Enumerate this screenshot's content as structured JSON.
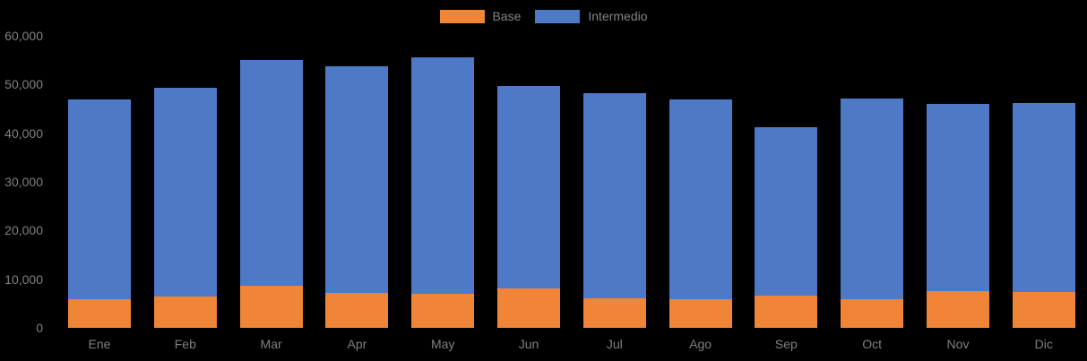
{
  "chart": {
    "background_color": "#000000",
    "axis_text_color": "#808080",
    "legend_text_color": "#848484"
  },
  "chart_data": {
    "type": "bar",
    "stacked": true,
    "title": "",
    "xlabel": "",
    "ylabel": "",
    "categories": [
      "Ene",
      "Feb",
      "Mar",
      "Apr",
      "May",
      "Jun",
      "Jul",
      "Ago",
      "Sep",
      "Oct",
      "Nov",
      "Dic"
    ],
    "series": [
      {
        "name": "Base",
        "color": "#F08437",
        "values": [
          5800,
          6500,
          8600,
          7100,
          7000,
          8100,
          6000,
          5900,
          6600,
          5900,
          7600,
          7400
        ]
      },
      {
        "name": "Intermedio",
        "color": "#4D79C7",
        "values": [
          41100,
          42800,
          46400,
          46600,
          48600,
          41600,
          42300,
          41000,
          34600,
          41300,
          38500,
          38800
        ]
      }
    ],
    "totals": [
      46900,
      49300,
      55000,
      53700,
      55600,
      49700,
      48300,
      46900,
      41200,
      47200,
      46100,
      46200
    ],
    "ylim": [
      0,
      60000
    ],
    "ytick_step": 10000,
    "ytick_labels": [
      "0",
      "10,000",
      "20,000",
      "30,000",
      "40,000",
      "50,000",
      "60,000"
    ],
    "legend_position": "top-center",
    "grid": false
  }
}
